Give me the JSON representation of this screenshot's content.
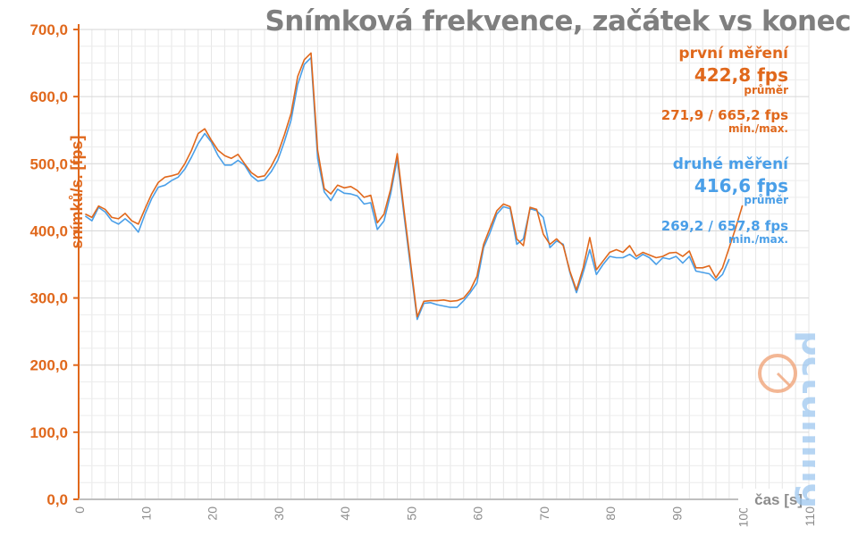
{
  "chart_data": {
    "type": "line",
    "title": "Snímková frekvence, začátek vs konec",
    "xlabel": "čas [s]",
    "ylabel": "snímků/s. [fps]",
    "xlim": [
      0,
      110
    ],
    "ylim": [
      0,
      700
    ],
    "xticks": [
      "0",
      "10",
      "20",
      "30",
      "40",
      "50",
      "60",
      "70",
      "80",
      "90",
      "100",
      "110"
    ],
    "yticks": [
      "0,0",
      "100,0",
      "200,0",
      "300,0",
      "400,0",
      "500,0",
      "600,0",
      "700,0"
    ],
    "grid": true,
    "series": [
      {
        "name": "první měření",
        "color": "#e0681c",
        "x": [
          1,
          2,
          3,
          4,
          5,
          6,
          7,
          8,
          9,
          10,
          11,
          12,
          13,
          14,
          15,
          16,
          17,
          18,
          19,
          20,
          21,
          22,
          23,
          24,
          25,
          26,
          27,
          28,
          29,
          30,
          31,
          32,
          33,
          34,
          35,
          36,
          37,
          38,
          39,
          40,
          41,
          42,
          43,
          44,
          45,
          46,
          47,
          48,
          49,
          50,
          51,
          52,
          53,
          54,
          55,
          56,
          57,
          58,
          59,
          60,
          61,
          62,
          63,
          64,
          65,
          66,
          67,
          68,
          69,
          70,
          71,
          72,
          73,
          74,
          75,
          76,
          77,
          78,
          79,
          80,
          81,
          82,
          83,
          84,
          85,
          86,
          87,
          88,
          89,
          90,
          91,
          92,
          93,
          94,
          95,
          96,
          97,
          98,
          99,
          100
        ],
        "values": [
          425,
          420,
          437,
          432,
          420,
          418,
          426,
          415,
          410,
          433,
          455,
          472,
          480,
          482,
          485,
          500,
          520,
          545,
          552,
          535,
          520,
          512,
          508,
          514,
          500,
          487,
          480,
          482,
          496,
          515,
          543,
          575,
          630,
          655,
          665,
          520,
          463,
          455,
          468,
          464,
          466,
          460,
          450,
          453,
          412,
          425,
          462,
          515,
          432,
          352,
          272,
          295,
          296,
          296,
          297,
          295,
          296,
          300,
          312,
          332,
          380,
          405,
          430,
          440,
          436,
          388,
          378,
          435,
          432,
          395,
          380,
          388,
          378,
          340,
          312,
          345,
          390,
          342,
          355,
          368,
          372,
          368,
          378,
          362,
          368,
          364,
          360,
          362,
          367,
          368,
          362,
          370,
          345,
          345,
          348,
          330,
          345,
          375,
          405,
          438
        ]
      },
      {
        "name": "druhé měření",
        "color": "#4a9fe8",
        "x": [
          1,
          2,
          3,
          4,
          5,
          6,
          7,
          8,
          9,
          10,
          11,
          12,
          13,
          14,
          15,
          16,
          17,
          18,
          19,
          20,
          21,
          22,
          23,
          24,
          25,
          26,
          27,
          28,
          29,
          30,
          31,
          32,
          33,
          34,
          35,
          36,
          37,
          38,
          39,
          40,
          41,
          42,
          43,
          44,
          45,
          46,
          47,
          48,
          49,
          50,
          51,
          52,
          53,
          54,
          55,
          56,
          57,
          58,
          59,
          60,
          61,
          62,
          63,
          64,
          65,
          66,
          67,
          68,
          69,
          70,
          71,
          72,
          73,
          74,
          75,
          76,
          77,
          78,
          79,
          80,
          81,
          82,
          83,
          84,
          85,
          86,
          87,
          88,
          89,
          90,
          91,
          92,
          93,
          94,
          95,
          96,
          97,
          98
        ],
        "values": [
          422,
          415,
          435,
          428,
          415,
          410,
          418,
          410,
          398,
          425,
          448,
          465,
          468,
          475,
          480,
          492,
          510,
          530,
          545,
          532,
          512,
          498,
          498,
          505,
          498,
          482,
          474,
          476,
          488,
          505,
          533,
          565,
          618,
          648,
          658,
          508,
          458,
          445,
          462,
          456,
          455,
          452,
          440,
          442,
          402,
          415,
          455,
          508,
          425,
          345,
          268,
          292,
          293,
          290,
          288,
          286,
          286,
          296,
          308,
          322,
          375,
          398,
          425,
          436,
          433,
          380,
          388,
          433,
          430,
          420,
          375,
          385,
          380,
          338,
          308,
          338,
          372,
          335,
          350,
          362,
          360,
          360,
          365,
          358,
          365,
          360,
          350,
          360,
          358,
          362,
          352,
          362,
          340,
          338,
          336,
          326,
          335,
          358
        ]
      }
    ],
    "stats": {
      "first": {
        "name": "první měření",
        "avg": "422,8 fps",
        "avg_label": "průměr",
        "minmax": "271,9 / 665,2 fps",
        "minmax_label": "min./max."
      },
      "second": {
        "name": "druhé měření",
        "avg": "416,6 fps",
        "avg_label": "průměr",
        "minmax": "269,2 / 657,8 fps",
        "minmax_label": "min./max."
      }
    },
    "watermark": "pctuning"
  }
}
